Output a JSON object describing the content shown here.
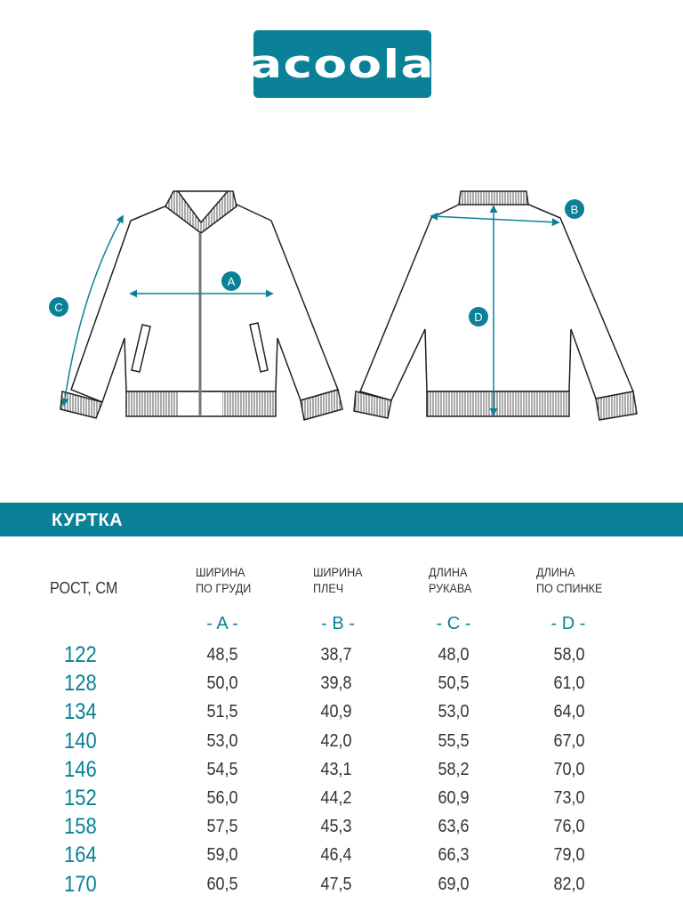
{
  "brand": {
    "logo_text": "acoola",
    "color": "#0a8196"
  },
  "diagram": {
    "labels": {
      "a": "A",
      "b": "B",
      "c": "C",
      "d": "D"
    }
  },
  "product": {
    "title": "КУРТКА"
  },
  "table": {
    "height_header": "РОСТ, СМ",
    "columns": [
      {
        "line1": "ШИРИНА",
        "line2": "ПО ГРУДИ",
        "letter": "- A -"
      },
      {
        "line1": "ШИРИНА",
        "line2": "ПЛЕЧ",
        "letter": "- B -"
      },
      {
        "line1": "ДЛИНА",
        "line2": "РУКАВА",
        "letter": "- C -"
      },
      {
        "line1": "ДЛИНА",
        "line2": "ПО СПИНКЕ",
        "letter": "- D -"
      }
    ],
    "rows": [
      {
        "height": "122",
        "values": [
          "48,5",
          "38,7",
          "48,0",
          "58,0"
        ]
      },
      {
        "height": "128",
        "values": [
          "50,0",
          "39,8",
          "50,5",
          "61,0"
        ]
      },
      {
        "height": "134",
        "values": [
          "51,5",
          "40,9",
          "53,0",
          "64,0"
        ]
      },
      {
        "height": "140",
        "values": [
          "53,0",
          "42,0",
          "55,5",
          "67,0"
        ]
      },
      {
        "height": "146",
        "values": [
          "54,5",
          "43,1",
          "58,2",
          "70,0"
        ]
      },
      {
        "height": "152",
        "values": [
          "56,0",
          "44,2",
          "60,9",
          "73,0"
        ]
      },
      {
        "height": "158",
        "values": [
          "57,5",
          "45,3",
          "63,6",
          "76,0"
        ]
      },
      {
        "height": "164",
        "values": [
          "59,0",
          "46,4",
          "66,3",
          "79,0"
        ]
      },
      {
        "height": "170",
        "values": [
          "60,5",
          "47,5",
          "69,0",
          "82,0"
        ]
      }
    ]
  }
}
